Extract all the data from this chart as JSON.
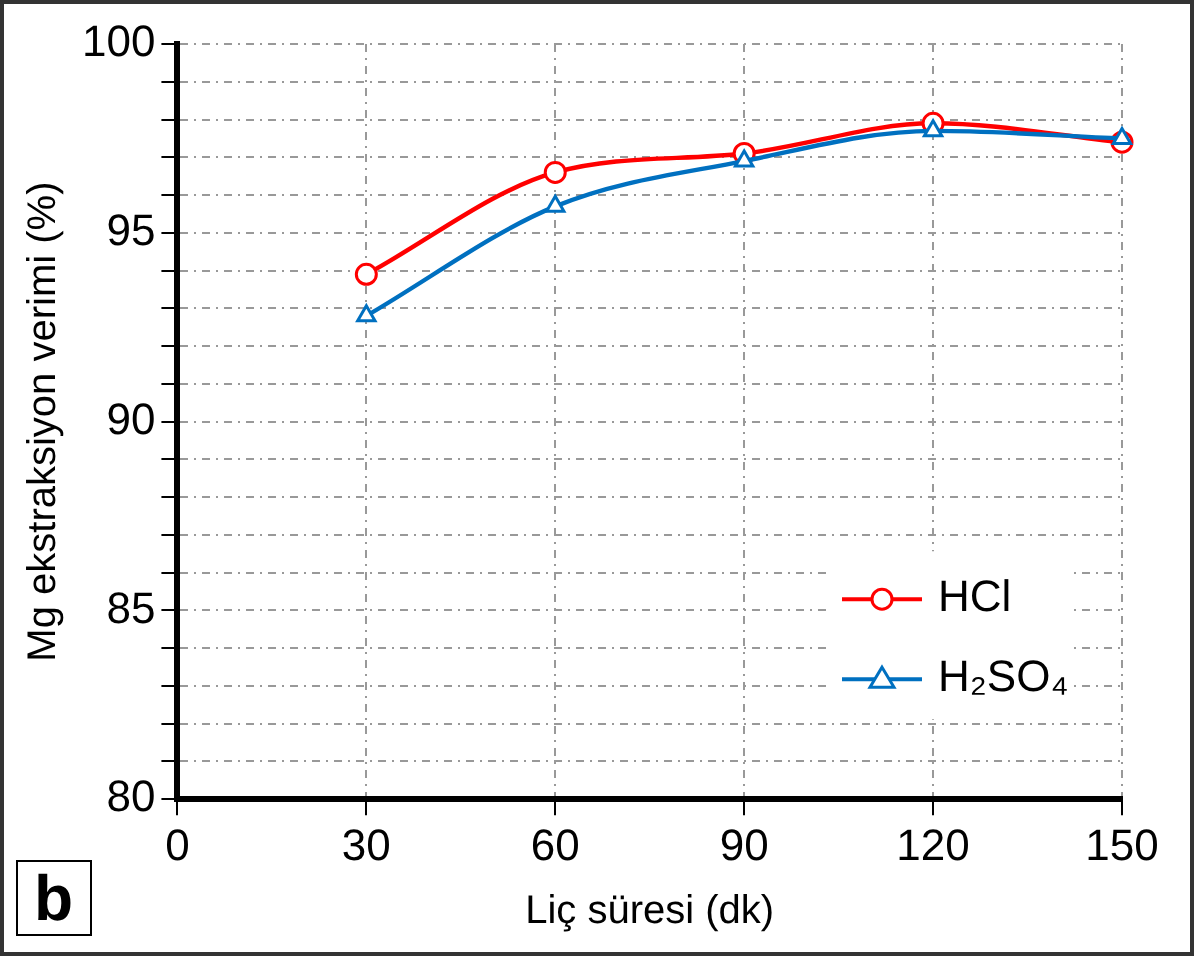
{
  "chart_data": {
    "type": "line",
    "xlabel": "Liç süresi (dk)",
    "ylabel": "Mg ekstraksiyon verimi (%)",
    "annotations": [
      "b"
    ],
    "x": [
      30,
      60,
      90,
      120,
      150
    ],
    "series": [
      {
        "name": "HCl",
        "color": "#ff0000",
        "marker": "circle",
        "values": [
          93.9,
          96.6,
          97.1,
          97.9,
          97.4
        ]
      },
      {
        "name": "H₂SO₄",
        "color": "#0070c0",
        "marker": "triangle",
        "values": [
          92.8,
          95.7,
          96.9,
          97.7,
          97.5
        ]
      }
    ],
    "xlim": [
      0,
      150
    ],
    "xticks": [
      0,
      30,
      60,
      90,
      120,
      150
    ],
    "ylim": [
      80,
      100
    ],
    "yticks": [
      80,
      {
        "value": 81,
        "label": null
      },
      {
        "value": 82,
        "label": null
      },
      {
        "value": 83,
        "label": null
      },
      {
        "value": 84,
        "label": null
      },
      85,
      {
        "value": 86,
        "label": null
      },
      {
        "value": 87,
        "label": null
      },
      {
        "value": 88,
        "label": null
      },
      {
        "value": 89,
        "label": null
      },
      90,
      {
        "value": 91,
        "label": null
      },
      {
        "value": 92,
        "label": null
      },
      {
        "value": 93,
        "label": null
      },
      {
        "value": 94,
        "label": null
      },
      95,
      {
        "value": 96,
        "label": null
      },
      {
        "value": 97,
        "label": null
      },
      {
        "value": 98,
        "label": null
      },
      {
        "value": 99,
        "label": null
      },
      100
    ],
    "grid": true,
    "legend": "bottom right",
    "line_style": "solid"
  }
}
